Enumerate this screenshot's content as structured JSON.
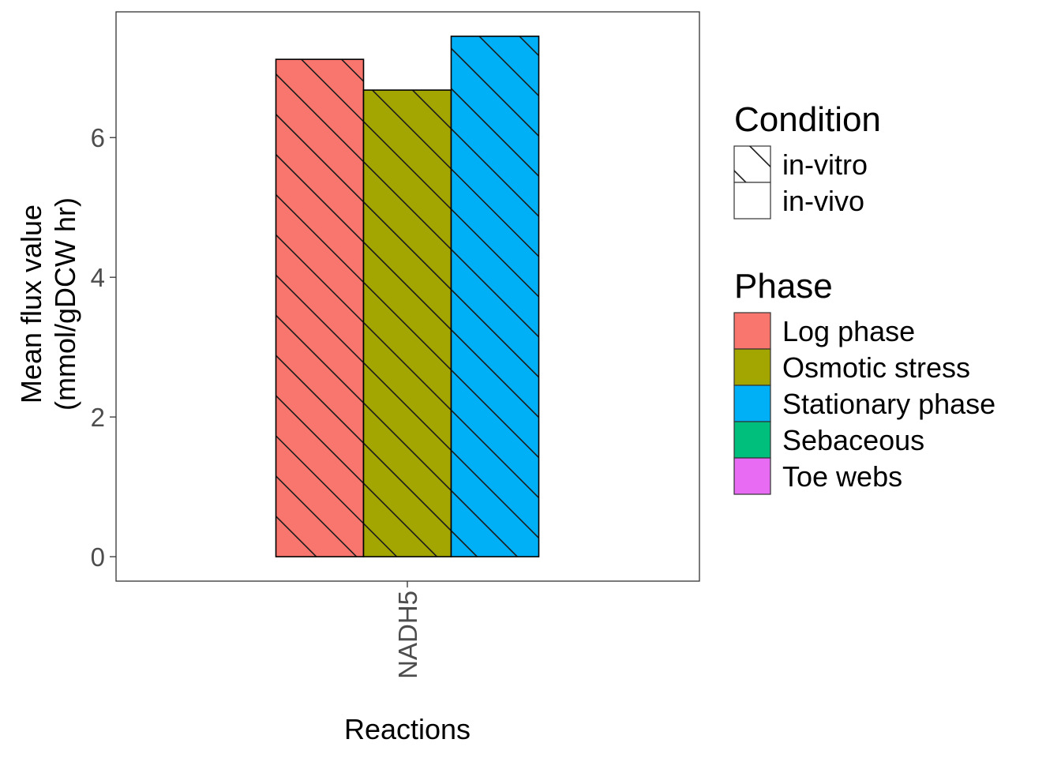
{
  "chart_data": {
    "type": "bar",
    "categories": [
      "NADH5"
    ],
    "series": [
      {
        "name": "Log phase",
        "condition": "in-vitro",
        "values": [
          7.12
        ]
      },
      {
        "name": "Osmotic stress",
        "condition": "in-vitro",
        "values": [
          6.68
        ]
      },
      {
        "name": "Stationary phase",
        "condition": "in-vitro",
        "values": [
          7.45
        ]
      }
    ],
    "title": "",
    "xlabel": "Reactions",
    "ylabel_lines": [
      "Mean flux value",
      "(mmol/gDCW hr)"
    ],
    "yticks": [
      0,
      2,
      4,
      6
    ],
    "ylim": [
      -0.35,
      7.8
    ],
    "grid": false,
    "legend_position": "right",
    "legends": [
      {
        "title": "Condition",
        "entries": [
          {
            "label": "in-vitro",
            "pattern": "stripe"
          },
          {
            "label": "in-vivo",
            "pattern": "none"
          }
        ]
      },
      {
        "title": "Phase",
        "entries": [
          {
            "label": "Log phase",
            "color": "#F8766D"
          },
          {
            "label": "Osmotic stress",
            "color": "#A3A500"
          },
          {
            "label": "Stationary phase",
            "color": "#00B0F6"
          },
          {
            "label": "Sebaceous",
            "color": "#00BF7D"
          },
          {
            "label": "Toe webs",
            "color": "#E76BF3"
          }
        ]
      }
    ]
  }
}
